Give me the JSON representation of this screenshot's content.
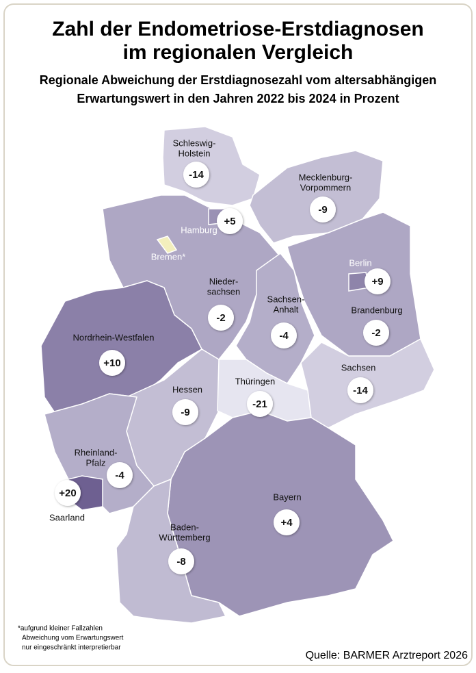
{
  "header": {
    "title": [
      "Zahl der Endometriose-Erstdiagnosen",
      "im regionalen Vergleich"
    ],
    "subtitle": [
      "Regionale Abweichung der Erstdiagnosezahl vom altersabhängigen",
      "Erwartungswert in den Jahren 2022 bis 2024 in Prozent"
    ]
  },
  "regions": [
    {
      "name": [
        "Schleswig-",
        "Holstein"
      ],
      "value": -14
    },
    {
      "name": [
        "Mecklenburg-",
        "Vorpommern"
      ],
      "value": -9
    },
    {
      "name": [
        "Nieder-",
        "sachsen"
      ],
      "value": -2
    },
    {
      "name": [
        "Sachsen-",
        "Anhalt"
      ],
      "value": -4
    },
    {
      "name": [
        "Brandenburg"
      ],
      "value": -2
    },
    {
      "name": [
        "Nordrhein-Westfalen"
      ],
      "value": 10,
      "value_label": "+10"
    },
    {
      "name": [
        "Hessen"
      ],
      "value": -9
    },
    {
      "name": [
        "Thüringen"
      ],
      "value": -21
    },
    {
      "name": [
        "Sachsen"
      ],
      "value": -14
    },
    {
      "name": [
        "Rheinland-",
        "Pfalz"
      ],
      "value": -4
    },
    {
      "name": [
        "Bayern"
      ],
      "value": 4,
      "value_label": "+4"
    },
    {
      "name": [
        "Baden-",
        "Württemberg"
      ],
      "value": -8
    },
    {
      "name": [
        "Saarland"
      ],
      "value": 20,
      "value_label": "+20"
    },
    {
      "name": [
        "Hamburg"
      ],
      "value": 5,
      "value_label": "+5"
    },
    {
      "name": [
        "Berlin"
      ],
      "value": 9,
      "value_label": "+9"
    },
    {
      "name": [
        "Bremen*"
      ]
    }
  ],
  "footnote": [
    "*aufgrund kleiner Fallzahlen",
    "Abweichung vom Erwartungswert",
    "nur eingeschränkt interpretierbar"
  ],
  "source": "Quelle: BARMER Arztreport 2026"
}
